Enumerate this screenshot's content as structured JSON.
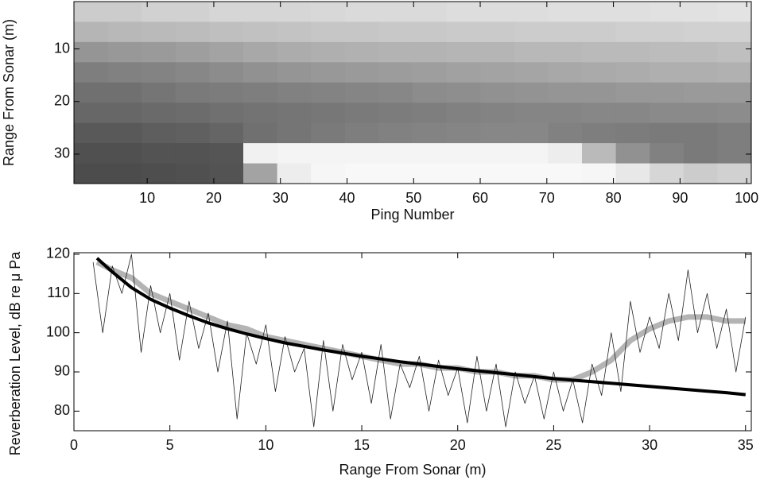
{
  "chart_data": [
    {
      "type": "heatmap",
      "xlabel": "Ping Number",
      "ylabel": "Range From Sonar (m)",
      "xlim": [
        -1,
        100.7
      ],
      "ylim": [
        1,
        35.6
      ],
      "y_inverted": true,
      "xticks": [
        10,
        20,
        30,
        40,
        50,
        60,
        70,
        80,
        90,
        100
      ],
      "yticks": [
        10,
        20,
        30
      ],
      "colormap": "gray",
      "z": [
        [
          22,
          22,
          20,
          20,
          18,
          18,
          18,
          17,
          16,
          16,
          16,
          15,
          15,
          15,
          14,
          14,
          14,
          13,
          13,
          12
        ],
        [
          32,
          31,
          30,
          29,
          28,
          27,
          26,
          25,
          25,
          24,
          24,
          23,
          23,
          22,
          22,
          22,
          21,
          21,
          20,
          20
        ],
        [
          46,
          45,
          44,
          42,
          40,
          38,
          36,
          35,
          34,
          33,
          33,
          32,
          32,
          31,
          31,
          30,
          30,
          29,
          29,
          28
        ],
        [
          56,
          55,
          54,
          52,
          50,
          48,
          46,
          45,
          44,
          43,
          42,
          41,
          40,
          39,
          38,
          37,
          36,
          35,
          35,
          34
        ],
        [
          62,
          62,
          60,
          58,
          57,
          56,
          55,
          54,
          53,
          52,
          50,
          49,
          48,
          47,
          46,
          46,
          45,
          45,
          44,
          44
        ],
        [
          66,
          66,
          65,
          64,
          62,
          61,
          60,
          59,
          58,
          57,
          56,
          55,
          54,
          53,
          53,
          52,
          52,
          51,
          51,
          50
        ],
        [
          72,
          72,
          70,
          69,
          67,
          62,
          60,
          58,
          56,
          55,
          54,
          53,
          52,
          52,
          55,
          56,
          57,
          58,
          58,
          56
        ],
        [
          76,
          76,
          75,
          75,
          74,
          6,
          5,
          5,
          5,
          5,
          5,
          5,
          5,
          5,
          8,
          30,
          48,
          55,
          58,
          56
        ],
        [
          78,
          78,
          77,
          76,
          75,
          40,
          8,
          4,
          3,
          3,
          3,
          3,
          3,
          3,
          3,
          4,
          10,
          18,
          22,
          20
        ]
      ]
    },
    {
      "type": "line",
      "xlabel": "Range From Sonar (m)",
      "ylabel": "Reverberation Level, dB re μ Pa",
      "xlim": [
        0,
        35.3
      ],
      "ylim": [
        75,
        120.4
      ],
      "xticks": [
        0,
        5,
        10,
        15,
        20,
        25,
        30,
        35
      ],
      "yticks": [
        80,
        90,
        100,
        110,
        120
      ],
      "series": [
        {
          "color": "#b4b4b4",
          "width": 7,
          "x": [
            1.2,
            2,
            3,
            4,
            5,
            6,
            7,
            8,
            9,
            10,
            11,
            12,
            13,
            14,
            15,
            16,
            17,
            18,
            19,
            20,
            21,
            22,
            23,
            24,
            25,
            26,
            27,
            28,
            29,
            30,
            31,
            32,
            33,
            34,
            35
          ],
          "values": [
            118,
            116,
            114,
            110,
            108,
            106,
            104,
            102,
            101,
            99,
            98,
            97,
            96,
            95,
            94,
            93,
            92,
            92,
            91,
            91,
            90,
            90,
            89,
            89,
            88,
            88,
            90,
            93,
            98,
            101,
            103,
            104,
            104,
            103,
            103
          ]
        },
        {
          "color": "#222222",
          "width": 0.8,
          "x": [
            1,
            1.5,
            2,
            2.5,
            3,
            3.5,
            4,
            4.5,
            5,
            5.5,
            6,
            6.5,
            7,
            7.5,
            8,
            8.5,
            9,
            9.5,
            10,
            10.5,
            11,
            11.5,
            12,
            12.5,
            13,
            13.5,
            14,
            14.5,
            15,
            15.5,
            16,
            16.5,
            17,
            17.5,
            18,
            18.5,
            19,
            19.5,
            20,
            20.5,
            21,
            21.5,
            22,
            22.5,
            23,
            23.5,
            24,
            24.5,
            25,
            25.5,
            26,
            26.5,
            27,
            27.5,
            28,
            28.5,
            29,
            29.5,
            30,
            30.5,
            31,
            31.5,
            32,
            32.5,
            33,
            33.5,
            34,
            34.5,
            35
          ],
          "values": [
            118,
            100,
            117,
            110,
            120,
            95,
            112,
            100,
            110,
            93,
            108,
            96,
            105,
            90,
            103,
            78,
            100,
            92,
            102,
            85,
            99,
            90,
            96,
            76,
            98,
            80,
            97,
            88,
            95,
            82,
            97,
            78,
            92,
            86,
            94,
            80,
            93,
            84,
            91,
            77,
            94,
            80,
            92,
            76,
            90,
            82,
            89,
            78,
            90,
            80,
            88,
            77,
            92,
            84,
            100,
            85,
            108,
            95,
            104,
            96,
            110,
            98,
            116,
            100,
            110,
            96,
            106,
            90,
            104
          ]
        },
        {
          "color": "#000000",
          "width": 4,
          "x": [
            1.2,
            2,
            3,
            4,
            5,
            6,
            7,
            8,
            9,
            10,
            11,
            12,
            13,
            14,
            15,
            16,
            17,
            18,
            19,
            20,
            21,
            22,
            23,
            24,
            25,
            26,
            27,
            28,
            29,
            30,
            31,
            32,
            33,
            34,
            35
          ],
          "values": [
            119,
            115.5,
            111.5,
            108.5,
            106.3,
            104.3,
            102.5,
            101,
            99.7,
            98.5,
            97.4,
            96.5,
            95.6,
            94.8,
            94,
            93.3,
            92.6,
            92,
            91.4,
            90.8,
            90.3,
            89.8,
            89.3,
            88.8,
            88.3,
            87.9,
            87.5,
            87.1,
            86.7,
            86.3,
            85.9,
            85.5,
            85.1,
            84.7,
            84.2
          ]
        }
      ]
    }
  ]
}
